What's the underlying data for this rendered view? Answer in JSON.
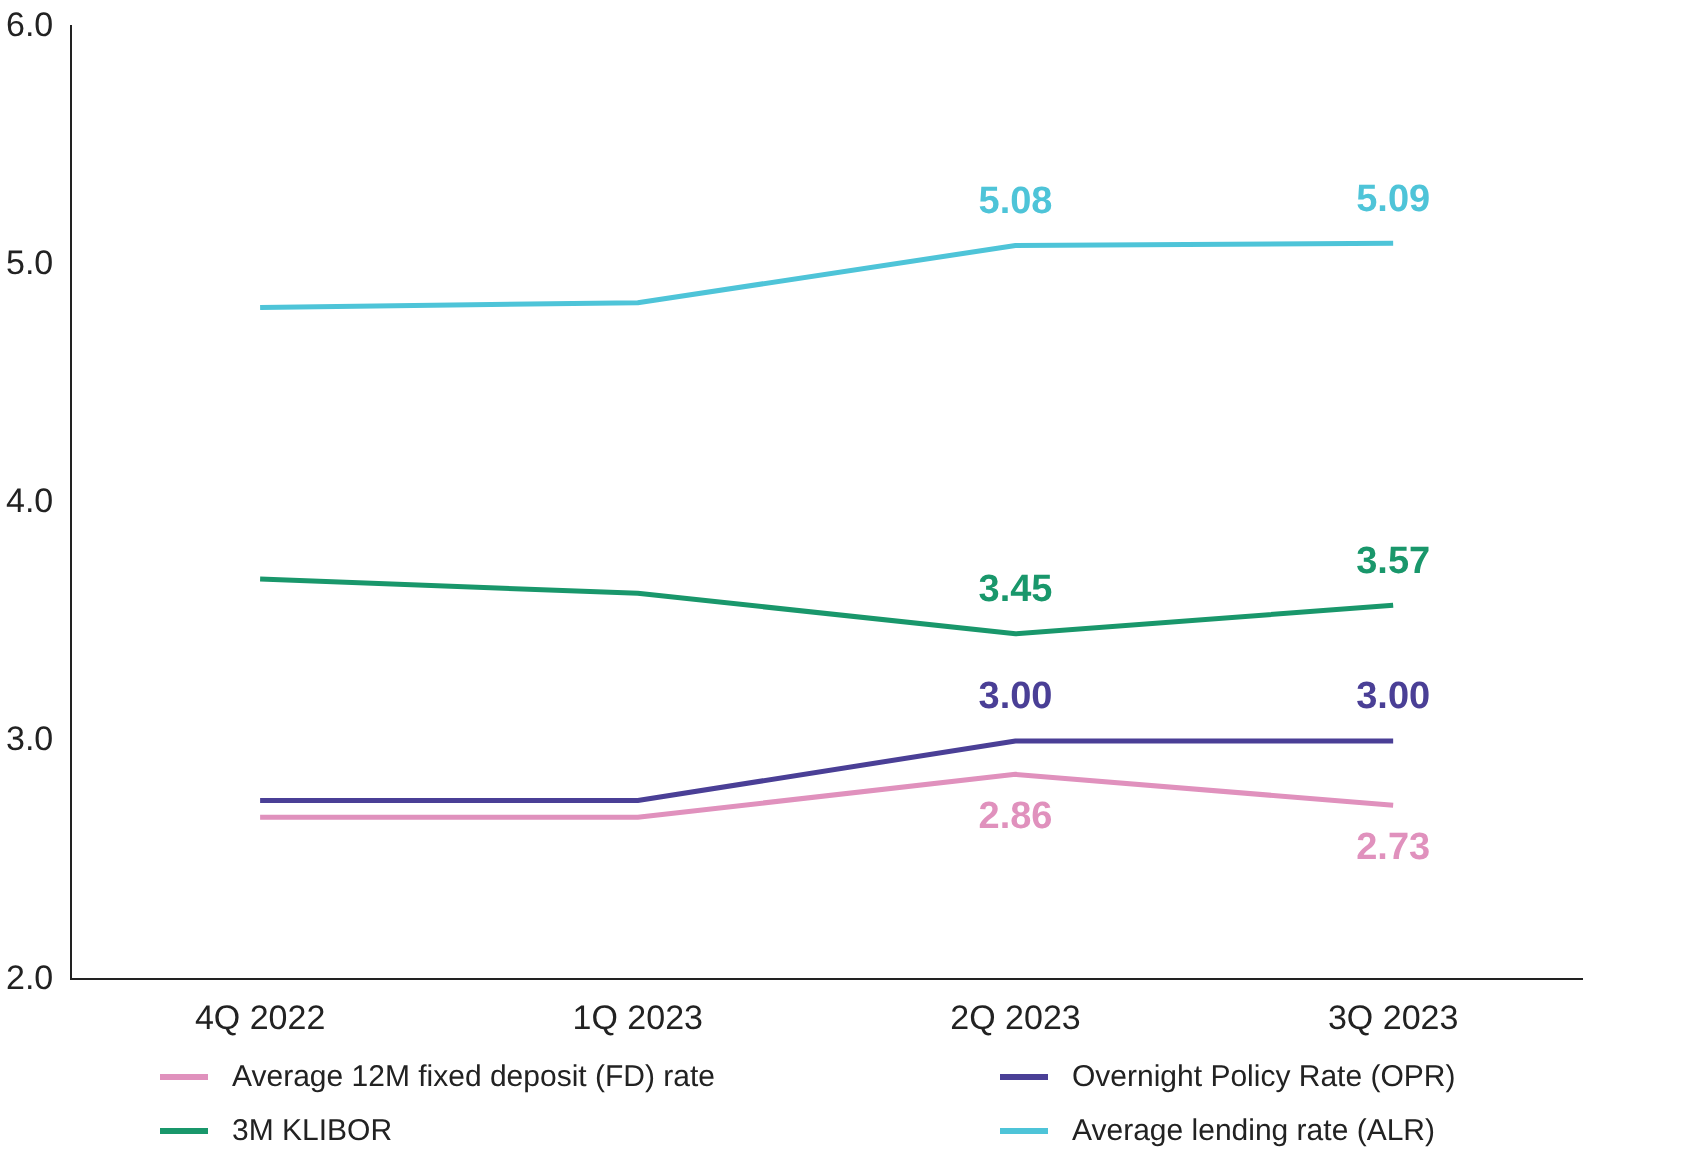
{
  "chart_data": {
    "type": "line",
    "categories": [
      "4Q 2022",
      "1Q 2023",
      "2Q 2023",
      "3Q 2023"
    ],
    "series": [
      {
        "name": "Average 12M fixed deposit (FD) rate",
        "color": "#e091bd",
        "values": [
          2.68,
          2.68,
          2.86,
          2.73
        ],
        "value_labels": [
          null,
          null,
          "2.86",
          "2.73"
        ]
      },
      {
        "name": "Overnight Policy Rate (OPR)",
        "color": "#4a3f96",
        "values": [
          2.75,
          2.75,
          3.0,
          3.0
        ],
        "value_labels": [
          null,
          null,
          "3.00",
          "3.00"
        ]
      },
      {
        "name": "3M KLIBOR",
        "color": "#19976b",
        "values": [
          3.68,
          3.62,
          3.45,
          3.57
        ],
        "value_labels": [
          null,
          null,
          "3.45",
          "3.57"
        ]
      },
      {
        "name": "Average lending rate (ALR)",
        "color": "#4ec4d8",
        "values": [
          4.82,
          4.84,
          5.08,
          5.09
        ],
        "value_labels": [
          null,
          null,
          "5.08",
          "5.09"
        ]
      }
    ],
    "ylim": [
      2.0,
      6.0
    ],
    "yticks": [
      {
        "value": 2,
        "label": "2.0"
      },
      {
        "value": 3,
        "label": "3.0"
      },
      {
        "value": 4,
        "label": "4.0"
      },
      {
        "value": 5,
        "label": "5.0"
      },
      {
        "value": 6,
        "label": "6.0"
      }
    ],
    "grid": false,
    "legend": "bottom",
    "marker": "none",
    "line_style": "solid"
  }
}
